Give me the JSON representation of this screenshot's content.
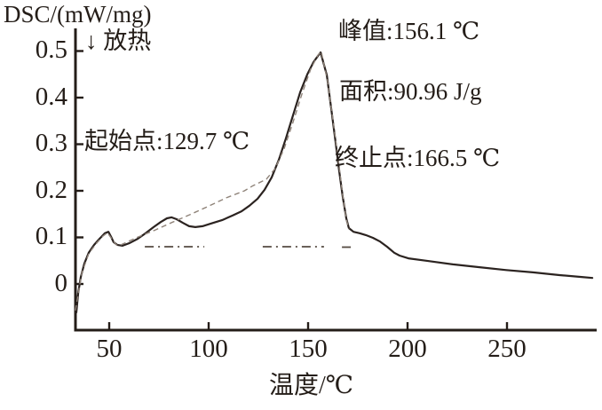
{
  "figure": {
    "background": "#ffffff",
    "ink_color": "#241d18",
    "curve_color": "#2b2320",
    "dashed_color": "#8f8379",
    "dashdot_color": "#554b42"
  },
  "chart_data": {
    "type": "line",
    "title": "DSC/(mW/mg)",
    "ylabel": "DSC/(mW/mg)",
    "xlabel": "温度/℃",
    "exotherm_label": "↓ 放热",
    "grid": false,
    "legend": "none",
    "xlim": [
      33,
      293
    ],
    "ylim": [
      -0.08,
      0.52
    ],
    "xticks": [
      50,
      100,
      150,
      200,
      250
    ],
    "yticks": [
      0,
      0.1,
      0.2,
      0.3,
      0.4,
      0.5
    ],
    "annotations": [
      {
        "id": "onset",
        "label": "起始点:129.7 ℃",
        "value": 129.7,
        "unit": "℃"
      },
      {
        "id": "peak",
        "label": "峰值:156.1 ℃",
        "value": 156.1,
        "unit": "℃"
      },
      {
        "id": "area",
        "label": "面积:90.96 J/g",
        "value": 90.96,
        "unit": "J/g"
      },
      {
        "id": "endset",
        "label": "终止点:166.5 ℃",
        "value": 166.5,
        "unit": "℃"
      }
    ],
    "series": [
      {
        "name": "dsc-curve",
        "style": "solid",
        "points": [
          [
            33.5,
            -0.061
          ],
          [
            34.4,
            -0.019
          ],
          [
            35.7,
            0.015
          ],
          [
            37.5,
            0.044
          ],
          [
            39.7,
            0.067
          ],
          [
            42.4,
            0.084
          ],
          [
            45.1,
            0.097
          ],
          [
            47.8,
            0.109
          ],
          [
            49.6,
            0.112
          ],
          [
            51.0,
            0.101
          ],
          [
            52.2,
            0.09
          ],
          [
            54.0,
            0.084
          ],
          [
            56.7,
            0.082
          ],
          [
            60.3,
            0.088
          ],
          [
            64.3,
            0.097
          ],
          [
            68.3,
            0.109
          ],
          [
            72.3,
            0.122
          ],
          [
            75.9,
            0.133
          ],
          [
            79.0,
            0.141
          ],
          [
            81.3,
            0.143
          ],
          [
            83.9,
            0.139
          ],
          [
            87.1,
            0.131
          ],
          [
            90.2,
            0.124
          ],
          [
            93.3,
            0.122
          ],
          [
            96.9,
            0.124
          ],
          [
            101.3,
            0.13
          ],
          [
            106.7,
            0.137
          ],
          [
            112.1,
            0.147
          ],
          [
            116.5,
            0.156
          ],
          [
            120.5,
            0.168
          ],
          [
            124.6,
            0.183
          ],
          [
            128.1,
            0.202
          ],
          [
            131.7,
            0.229
          ],
          [
            135.3,
            0.267
          ],
          [
            138.8,
            0.312
          ],
          [
            142.4,
            0.362
          ],
          [
            146.0,
            0.411
          ],
          [
            149.6,
            0.45
          ],
          [
            152.7,
            0.476
          ],
          [
            155.0,
            0.49
          ],
          [
            156.3,
            0.497
          ],
          [
            159.4,
            0.448
          ],
          [
            161.6,
            0.377
          ],
          [
            163.8,
            0.305
          ],
          [
            165.6,
            0.244
          ],
          [
            167.4,
            0.187
          ],
          [
            169.2,
            0.141
          ],
          [
            170.5,
            0.12
          ],
          [
            172.8,
            0.112
          ],
          [
            175.9,
            0.109
          ],
          [
            179.0,
            0.105
          ],
          [
            182.6,
            0.099
          ],
          [
            186.2,
            0.091
          ],
          [
            189.7,
            0.08
          ],
          [
            193.3,
            0.067
          ],
          [
            196.0,
            0.061
          ],
          [
            200.4,
            0.055
          ],
          [
            209.4,
            0.05
          ],
          [
            222.8,
            0.042
          ],
          [
            236.2,
            0.036
          ],
          [
            249.6,
            0.03
          ],
          [
            263.0,
            0.025
          ],
          [
            276.4,
            0.019
          ],
          [
            287.5,
            0.015
          ],
          [
            292.9,
            0.013
          ]
        ]
      },
      {
        "name": "integration-tangent",
        "style": "dashed",
        "points": [
          [
            33.0,
            -0.057
          ],
          [
            36.2,
            0.023
          ],
          [
            39.7,
            0.065
          ],
          [
            43.3,
            0.086
          ],
          [
            46.9,
            0.103
          ],
          [
            49.1,
            0.11
          ],
          [
            51.3,
            0.097
          ],
          [
            53.6,
            0.084
          ],
          [
            54.9,
            0.082
          ],
          [
            64.0,
            0.1
          ],
          [
            73.2,
            0.116
          ],
          [
            82.0,
            0.133
          ],
          [
            91.1,
            0.15
          ],
          [
            100.0,
            0.167
          ],
          [
            108.9,
            0.185
          ],
          [
            118.0,
            0.2
          ],
          [
            122.3,
            0.211
          ],
          [
            129.0,
            0.225
          ],
          [
            133.5,
            0.248
          ],
          [
            137.9,
            0.29
          ],
          [
            142.4,
            0.347
          ],
          [
            146.9,
            0.408
          ],
          [
            151.3,
            0.461
          ],
          [
            154.9,
            0.491
          ],
          [
            156.6,
            0.499
          ],
          [
            159.8,
            0.434
          ],
          [
            162.5,
            0.352
          ],
          [
            165.2,
            0.267
          ],
          [
            167.4,
            0.19
          ],
          [
            169.2,
            0.139
          ],
          [
            170.5,
            0.118
          ]
        ]
      },
      {
        "name": "baseline-segment-1",
        "style": "dashdot",
        "points": [
          [
            67.9,
            0.08
          ],
          [
            97.8,
            0.08
          ]
        ]
      },
      {
        "name": "baseline-segment-2",
        "style": "dashdot",
        "points": [
          [
            127.2,
            0.08
          ],
          [
            158.0,
            0.08
          ]
        ]
      },
      {
        "name": "baseline-segment-3",
        "style": "dashdot",
        "points": [
          [
            167.0,
            0.079
          ],
          [
            173.7,
            0.079
          ]
        ]
      }
    ]
  }
}
